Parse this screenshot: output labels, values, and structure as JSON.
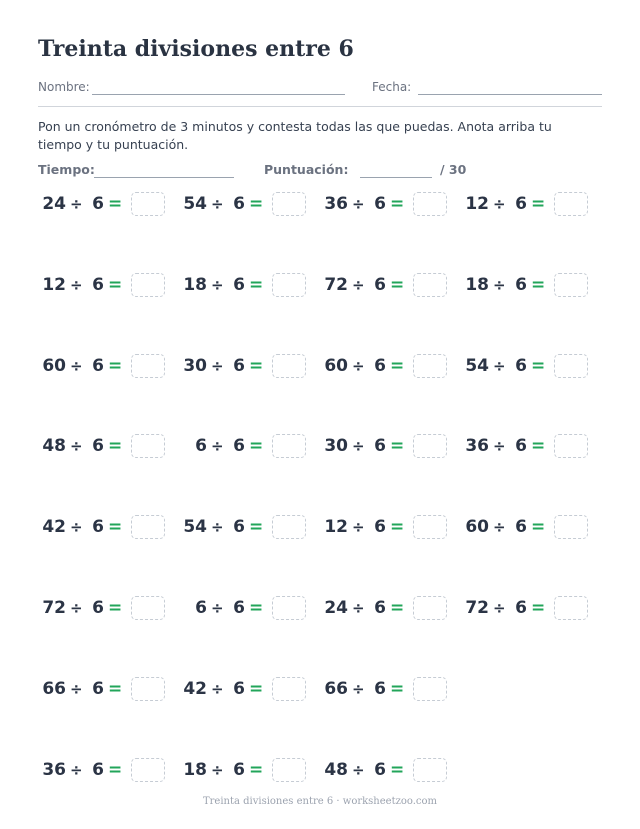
{
  "title": "Treinta divisiones entre 6",
  "header": {
    "name_label": "Nombre:",
    "date_label": "Fecha:"
  },
  "instructions": "Pon un cronómetro de 3 minutos y contesta todas las que puedas. Anota arriba tu tiempo y tu puntuación.",
  "score": {
    "time_label": "Tiempo:",
    "score_label": "Puntuación:",
    "total": "/ 30"
  },
  "operator": "÷",
  "equals": "=",
  "divisor": "6",
  "problems": [
    [
      24,
      54,
      36,
      12
    ],
    [
      12,
      18,
      72,
      18
    ],
    [
      60,
      30,
      60,
      54
    ],
    [
      48,
      6,
      30,
      36
    ],
    [
      42,
      54,
      12,
      60
    ],
    [
      72,
      6,
      24,
      72
    ],
    [
      66,
      42,
      66
    ],
    [
      36,
      18,
      48
    ]
  ],
  "footer": "Treinta divisiones entre 6 · worksheetzoo.com"
}
